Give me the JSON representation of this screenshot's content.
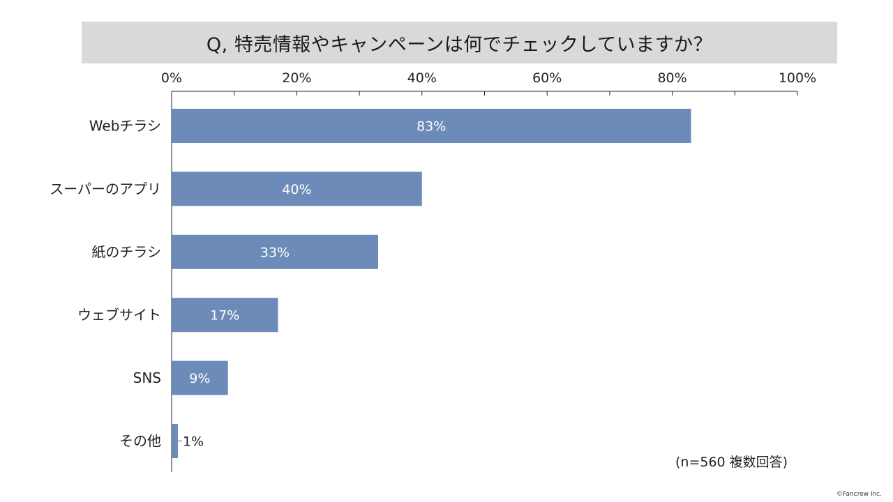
{
  "title": "Q, 特売情報やキャンペーンは何でチェックしていますか？",
  "note": "(n=560 複数回答)",
  "copyright": "©Fancrew Inc.",
  "colors": {
    "bar": "#6d8bb8",
    "title_background": "#d9d9db"
  },
  "chart_data": {
    "type": "bar",
    "orientation": "horizontal",
    "title": "Q, 特売情報やキャンペーンは何でチェックしていますか？",
    "categories": [
      "Webチラシ",
      "スーパーのアプリ",
      "紙のチラシ",
      "ウェブサイト",
      "SNS",
      "その他"
    ],
    "values": [
      83,
      40,
      33,
      17,
      9,
      1
    ],
    "value_labels": [
      "83%",
      "40%",
      "33%",
      "17%",
      "9%",
      "1%"
    ],
    "xlim": [
      0,
      100
    ],
    "x_ticks": [
      0,
      20,
      40,
      60,
      80,
      100
    ],
    "x_tick_labels": [
      "0%",
      "20%",
      "40%",
      "60%",
      "80%",
      "100%"
    ],
    "x_axis_position": "top",
    "grid": false,
    "legend": "none"
  }
}
